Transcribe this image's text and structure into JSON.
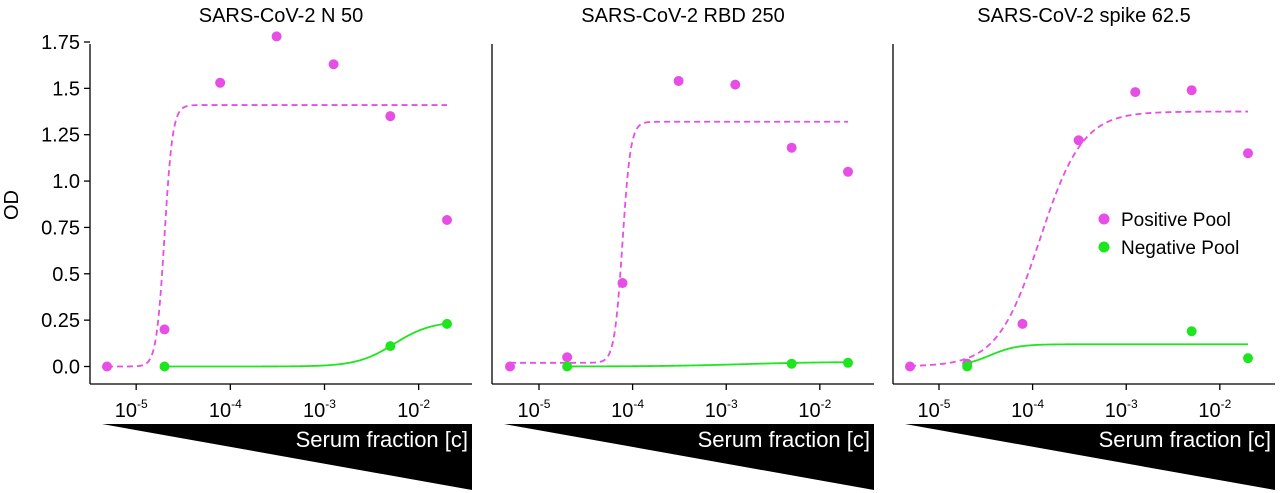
{
  "y_axis_label": "OD",
  "x_axis_label": "Serum fraction [c]",
  "legend": [
    {
      "label": "Positive Pool",
      "color": "#e64ee6"
    },
    {
      "label": "Negative Pool",
      "color": "#1ee61e"
    }
  ],
  "colors": {
    "positive": "#e64ee6",
    "negative": "#1ee61e",
    "axis": "#000000",
    "wedge": "#000000"
  },
  "chart_data": [
    {
      "type": "scatter",
      "title": "SARS-CoV-2 N 50",
      "xlabel": "Serum fraction [c]",
      "ylabel": "OD",
      "xscale": "log",
      "ylim": [
        0,
        1.75
      ],
      "yticks": [
        "0.0",
        "0.25",
        "0.5",
        "0.75",
        "1.0",
        "1.25",
        "1.5",
        "1.75"
      ],
      "xticks": [
        {
          "base": "10",
          "exp": "-5",
          "value": 1e-05
        },
        {
          "base": "10",
          "exp": "-4",
          "value": 0.0001
        },
        {
          "base": "10",
          "exp": "-3",
          "value": 0.001
        },
        {
          "base": "10",
          "exp": "-2",
          "value": 0.01
        }
      ],
      "series": [
        {
          "name": "Positive Pool",
          "x": [
            4.9e-06,
            2e-05,
            7.8e-05,
            0.00031,
            0.00125,
            0.005,
            0.02
          ],
          "y": [
            0.0,
            0.2,
            1.53,
            1.78,
            1.63,
            1.35,
            0.79
          ],
          "fit": {
            "bottom": 0.0,
            "top": 1.41,
            "ec50": 2e-05,
            "hill": 10,
            "xmin": 4.9e-06,
            "xmax": 0.02,
            "style": "dashed"
          }
        },
        {
          "name": "Negative Pool",
          "x": [
            2e-05,
            0.005,
            0.02
          ],
          "y": [
            0.0,
            0.11,
            0.23
          ],
          "fit": {
            "bottom": 0.0,
            "top": 0.245,
            "ec50": 0.0055,
            "hill": 2.2,
            "xmin": 2e-05,
            "xmax": 0.02,
            "style": "solid"
          }
        }
      ]
    },
    {
      "type": "scatter",
      "title": "SARS-CoV-2 RBD 250",
      "xlabel": "Serum fraction [c]",
      "xscale": "log",
      "ylim": [
        0,
        1.75
      ],
      "xticks": [
        {
          "base": "10",
          "exp": "-5",
          "value": 1e-05
        },
        {
          "base": "10",
          "exp": "-4",
          "value": 0.0001
        },
        {
          "base": "10",
          "exp": "-3",
          "value": 0.001
        },
        {
          "base": "10",
          "exp": "-2",
          "value": 0.01
        }
      ],
      "series": [
        {
          "name": "Positive Pool",
          "x": [
            4.9e-06,
            2e-05,
            7.8e-05,
            0.00031,
            0.00125,
            0.005,
            0.02
          ],
          "y": [
            0.0,
            0.05,
            0.45,
            1.54,
            1.52,
            1.18,
            1.05
          ],
          "fit": {
            "bottom": 0.02,
            "top": 1.32,
            "ec50": 7.8e-05,
            "hill": 10,
            "xmin": 4.9e-06,
            "xmax": 0.02,
            "style": "dashed"
          }
        },
        {
          "name": "Negative Pool",
          "x": [
            2e-05,
            0.005,
            0.02
          ],
          "y": [
            0.0,
            0.015,
            0.02
          ],
          "fit": {
            "bottom": 0.0,
            "top": 0.025,
            "ec50": 0.0015,
            "hill": 1.0,
            "xmin": 2e-05,
            "xmax": 0.02,
            "style": "solid"
          }
        }
      ]
    },
    {
      "type": "scatter",
      "title": "SARS-CoV-2 spike 62.5",
      "xlabel": "Serum fraction [c]",
      "xscale": "log",
      "ylim": [
        0,
        1.75
      ],
      "xticks": [
        {
          "base": "10",
          "exp": "-5",
          "value": 1e-05
        },
        {
          "base": "10",
          "exp": "-4",
          "value": 0.0001
        },
        {
          "base": "10",
          "exp": "-3",
          "value": 0.001
        },
        {
          "base": "10",
          "exp": "-2",
          "value": 0.01
        }
      ],
      "series": [
        {
          "name": "Positive Pool",
          "x": [
            4.9e-06,
            2e-05,
            7.8e-05,
            0.00031,
            0.00125,
            0.005,
            0.02
          ],
          "y": [
            0.0,
            0.015,
            0.23,
            1.22,
            1.48,
            1.49,
            1.15
          ],
          "fit": {
            "bottom": 0.0,
            "top": 1.375,
            "ec50": 0.00012,
            "hill": 1.9,
            "xmin": 4.9e-06,
            "xmax": 0.02,
            "style": "dashed"
          }
        },
        {
          "name": "Negative Pool",
          "x": [
            2e-05,
            0.005,
            0.02
          ],
          "y": [
            0.0,
            0.19,
            0.045
          ],
          "fit": {
            "bottom": 0.0,
            "top": 0.12,
            "ec50": 3.5e-05,
            "hill": 3.0,
            "xmin": 2e-05,
            "xmax": 0.02,
            "style": "solid"
          }
        }
      ]
    }
  ]
}
